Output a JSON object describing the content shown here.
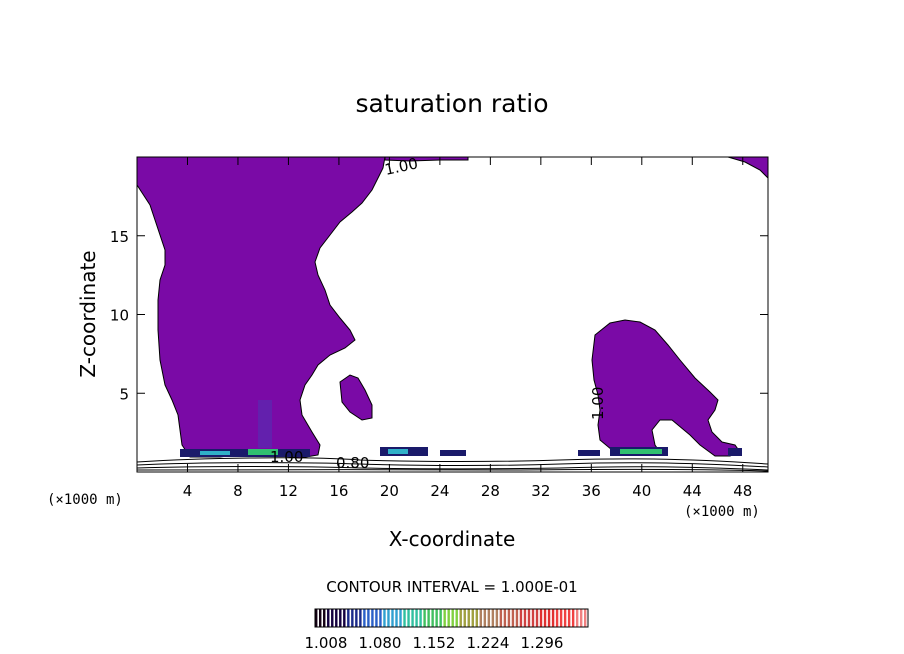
{
  "chart_data": {
    "type": "contour",
    "title": "saturation ratio",
    "xlabel": "X-coordinate",
    "ylabel": "Z-coordinate",
    "x_unit": "(×1000 m)",
    "z_unit": "(×1000 m)",
    "xlim": [
      0,
      50
    ],
    "ylim": [
      0,
      20
    ],
    "x_ticks": [
      4,
      8,
      12,
      16,
      20,
      24,
      28,
      32,
      36,
      40,
      44,
      48
    ],
    "y_ticks": [
      5,
      10,
      15
    ],
    "contour_interval_text": "CONTOUR INTERVAL = 1.000E-01",
    "contour_labels": [
      "1.00",
      "1.00",
      "1.00",
      "0.80"
    ],
    "colorbar": {
      "tick_labels": [
        "1.008",
        "1.080",
        "1.152",
        "1.224",
        "1.296"
      ],
      "colors": [
        "#140014",
        "#140040",
        "#1a2a8a",
        "#2a60c8",
        "#30a0d0",
        "#30c0a0",
        "#40c060",
        "#80d040",
        "#a0a040",
        "#b08060",
        "#c06050",
        "#d04040",
        "#e03030",
        "#f04040",
        "#f08080"
      ]
    },
    "fill_color": "#7a0aa6"
  }
}
